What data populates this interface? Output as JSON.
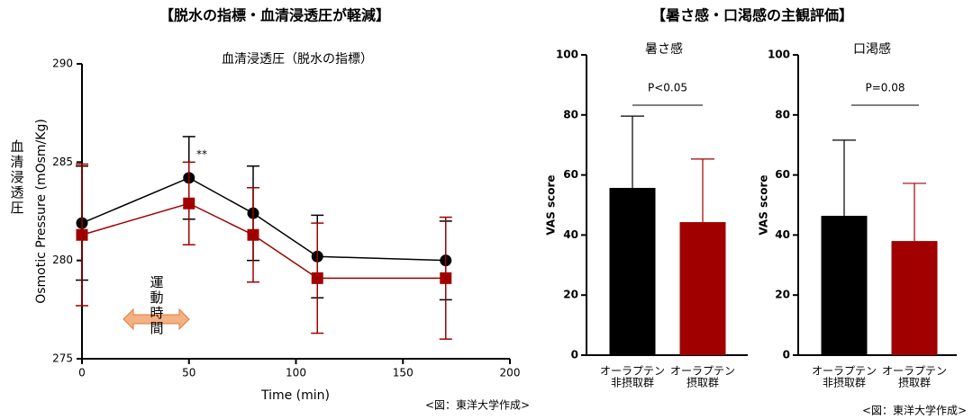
{
  "headers": [
    "【脱水の指標・血清浸透圧が軽減】",
    "【暑さ感・口渇感の主観評価】"
  ],
  "sources": [
    "<図：東洋大学作成>",
    "<図：東洋大学作成>"
  ],
  "chart_data": [
    {
      "type": "line",
      "title": "血清浸透圧（脱水の指標）",
      "x_label": "Time (min)",
      "y_label": "Osmotic Pressure (mOsm/Kg)",
      "y_label_ja": "血清浸透圧",
      "x": [
        0,
        50,
        80,
        110,
        170
      ],
      "xlim": [
        0,
        200
      ],
      "xticks": [
        0,
        50,
        100,
        150,
        200
      ],
      "ylim": [
        275,
        290
      ],
      "yticks": [
        275,
        280,
        285,
        290
      ],
      "series": [
        {
          "color": "#000000",
          "marker": "circle",
          "values": [
            281.9,
            284.2,
            282.4,
            280.2,
            280.0
          ],
          "errors": [
            2.9,
            2.1,
            2.4,
            2.1,
            2.0
          ]
        },
        {
          "color": "#a00000",
          "marker": "square",
          "values": [
            281.3,
            282.9,
            281.3,
            279.1,
            279.1
          ],
          "errors": [
            3.6,
            2.1,
            2.4,
            2.8,
            3.1
          ]
        }
      ],
      "annotations": [
        "**",
        "運動時間"
      ]
    },
    {
      "type": "bar",
      "title": "暑さ感",
      "y_label": "VAS score",
      "categories": [
        [
          "オーラプテン",
          "非摂取群"
        ],
        [
          "オーラプテン",
          "摂取群"
        ]
      ],
      "values": [
        55.7,
        44.3
      ],
      "errors": [
        23.9,
        21.0
      ],
      "colors": [
        "#000000",
        "#a00000"
      ],
      "ylim": [
        0,
        100
      ],
      "yticks": [
        0,
        20,
        40,
        60,
        80,
        100
      ],
      "annotation": "P<0.05"
    },
    {
      "type": "bar",
      "title": "口渇感",
      "y_label": "VAS score",
      "categories": [
        [
          "オーラプテン",
          "非摂取群"
        ],
        [
          "オーラプテン",
          "摂取群"
        ]
      ],
      "values": [
        46.4,
        38.0
      ],
      "errors": [
        25.2,
        19.2
      ],
      "colors": [
        "#000000",
        "#a00000"
      ],
      "ylim": [
        0,
        100
      ],
      "yticks": [
        0,
        20,
        40,
        60,
        80,
        100
      ],
      "annotation": "P=0.08"
    }
  ]
}
